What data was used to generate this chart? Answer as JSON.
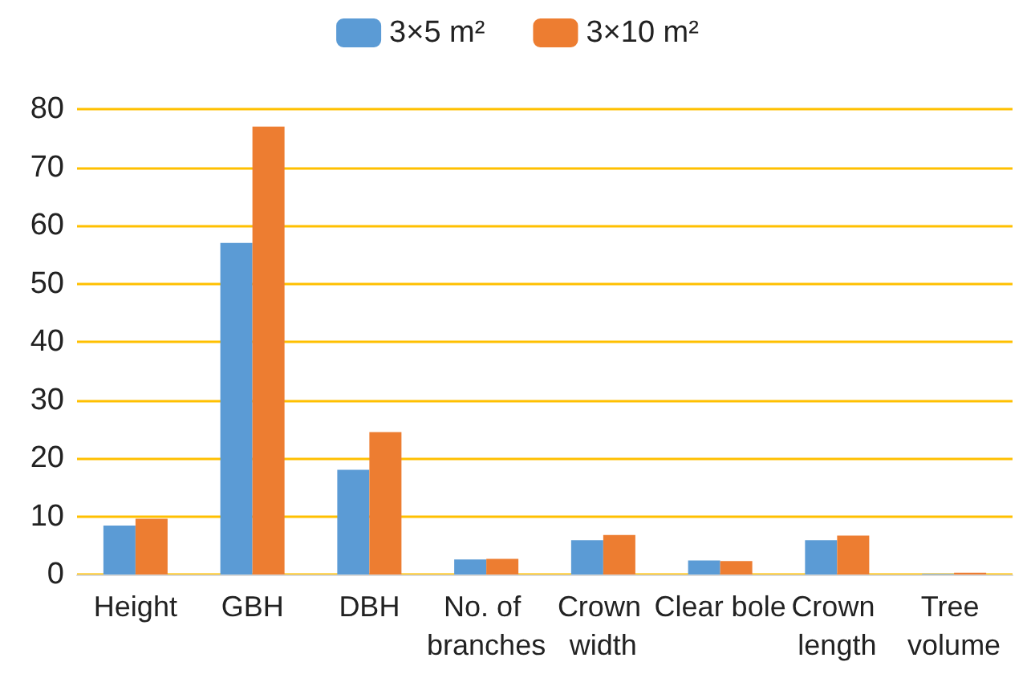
{
  "chart_data": {
    "type": "bar",
    "categories": [
      "Height",
      "GBH",
      "DBH",
      "No. of branches",
      "Crown width",
      "Clear bole",
      "Crown length",
      "Tree volume"
    ],
    "series": [
      {
        "name": "3×5 m²",
        "color": "#5b9bd5",
        "values": [
          8.4,
          57,
          18,
          2.6,
          5.9,
          2.4,
          5.9,
          0.1
        ]
      },
      {
        "name": "3×10 m²",
        "color": "#ed7d31",
        "values": [
          9.6,
          77,
          24.5,
          2.7,
          6.8,
          2.3,
          6.7,
          0.3
        ]
      }
    ],
    "ylim": [
      0,
      80
    ],
    "yticks": [
      0,
      10,
      20,
      30,
      40,
      50,
      60,
      70,
      80
    ],
    "grid": "y",
    "legend": "top"
  }
}
